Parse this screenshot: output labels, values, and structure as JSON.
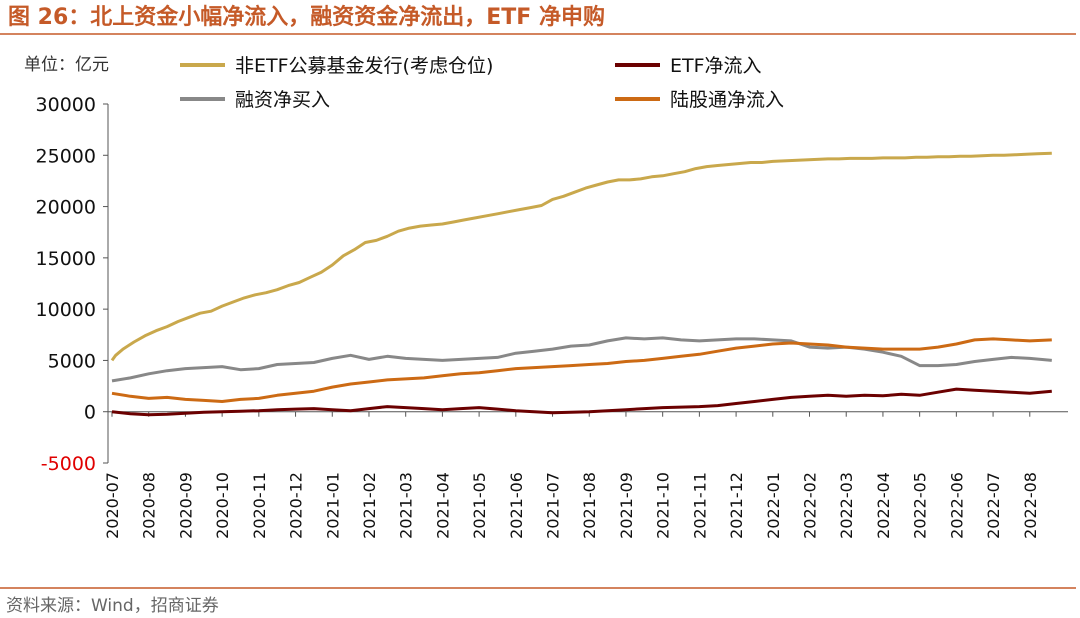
{
  "figure": {
    "title": "图 26：北上资金小幅净流入，融资资金净流出，ETF 净申购",
    "unit_label": "单位：亿元",
    "source": "资料来源：Wind，招商证券"
  },
  "chart_data": {
    "type": "line",
    "ylim": [
      -5000,
      30000
    ],
    "y_ticks": [
      30000,
      25000,
      20000,
      15000,
      10000,
      5000,
      0,
      -5000
    ],
    "y_tick_labels": [
      "30000",
      "25000",
      "20000",
      "15000",
      "10000",
      "5000",
      "0",
      "-5000"
    ],
    "categories": [
      "2020-07",
      "2020-08",
      "2020-09",
      "2020-10",
      "2020-11",
      "2020-12",
      "2021-01",
      "2021-02",
      "2021-03",
      "2021-04",
      "2021-05",
      "2021-06",
      "2021-07",
      "2021-08",
      "2021-09",
      "2021-10",
      "2021-11",
      "2021-12",
      "2022-01",
      "2022-02",
      "2022-03",
      "2022-04",
      "2022-05",
      "2022-06",
      "2022-07",
      "2022-08"
    ],
    "series": [
      {
        "name": "非ETF公募基金发行(考虑仓位)",
        "color": "#c9a84c",
        "x": [
          0,
          0.1,
          0.3,
          0.6,
          0.9,
          1.2,
          1.5,
          1.8,
          2.1,
          2.4,
          2.7,
          3,
          3.3,
          3.6,
          3.9,
          4.2,
          4.5,
          4.8,
          5.1,
          5.4,
          5.7,
          6,
          6.3,
          6.6,
          6.9,
          7.2,
          7.5,
          7.8,
          8.1,
          8.4,
          8.7,
          9,
          9.3,
          9.6,
          9.9,
          10.2,
          10.5,
          10.8,
          11.1,
          11.4,
          11.7,
          12,
          12.3,
          12.6,
          12.9,
          13.2,
          13.5,
          13.8,
          14.1,
          14.4,
          14.7,
          15,
          15.3,
          15.6,
          15.9,
          16.2,
          16.5,
          16.8,
          17.1,
          17.4,
          17.7,
          18,
          18.3,
          18.6,
          18.9,
          19.2,
          19.5,
          19.8,
          20.1,
          20.4,
          20.7,
          21,
          21.3,
          21.6,
          21.9,
          22.2,
          22.5,
          22.8,
          23.1,
          23.4,
          23.7,
          24,
          24.3,
          24.6,
          24.9,
          25.2,
          25.6
        ],
        "values": [
          5000,
          5500,
          6100,
          6800,
          7400,
          7900,
          8300,
          8800,
          9200,
          9600,
          9800,
          10300,
          10700,
          11100,
          11400,
          11600,
          11900,
          12300,
          12600,
          13100,
          13600,
          14300,
          15200,
          15800,
          16500,
          16700,
          17100,
          17600,
          17900,
          18100,
          18200,
          18300,
          18500,
          18700,
          18900,
          19100,
          19300,
          19500,
          19700,
          19900,
          20100,
          20700,
          21000,
          21400,
          21800,
          22100,
          22400,
          22600,
          22600,
          22700,
          22900,
          23000,
          23200,
          23400,
          23700,
          23900,
          24000,
          24100,
          24200,
          24300,
          24300,
          24400,
          24450,
          24500,
          24550,
          24600,
          24650,
          24650,
          24700,
          24700,
          24700,
          24750,
          24750,
          24750,
          24800,
          24800,
          24850,
          24850,
          24900,
          24900,
          24950,
          25000,
          25000,
          25050,
          25100,
          25150,
          25200
        ]
      },
      {
        "name": "ETF净流入",
        "color": "#6b0000",
        "x": [
          0,
          0.5,
          1,
          1.5,
          2,
          2.5,
          3,
          3.5,
          4,
          4.5,
          5,
          5.5,
          6,
          6.5,
          7,
          7.5,
          8,
          8.5,
          9,
          9.5,
          10,
          10.5,
          11,
          11.5,
          12,
          12.5,
          13,
          13.5,
          14,
          14.5,
          15,
          15.5,
          16,
          16.5,
          17,
          17.5,
          18,
          18.5,
          19,
          19.5,
          20,
          20.5,
          21,
          21.5,
          22,
          22.5,
          23,
          23.5,
          24,
          24.5,
          25,
          25.6
        ],
        "values": [
          0,
          -200,
          -300,
          -250,
          -150,
          -50,
          0,
          50,
          100,
          200,
          250,
          300,
          200,
          100,
          300,
          500,
          400,
          300,
          200,
          300,
          400,
          250,
          100,
          0,
          -100,
          -50,
          0,
          100,
          200,
          300,
          400,
          450,
          500,
          600,
          800,
          1000,
          1200,
          1400,
          1500,
          1600,
          1500,
          1600,
          1550,
          1700,
          1600,
          1900,
          2200,
          2100,
          2000,
          1900,
          1800,
          2000
        ]
      },
      {
        "name": "融资净买入",
        "color": "#888888",
        "x": [
          0,
          0.5,
          1,
          1.5,
          2,
          2.5,
          3,
          3.5,
          4,
          4.5,
          5,
          5.5,
          6,
          6.5,
          7,
          7.5,
          8,
          8.5,
          9,
          9.5,
          10,
          10.5,
          11,
          11.5,
          12,
          12.5,
          13,
          13.5,
          14,
          14.5,
          15,
          15.5,
          16,
          16.5,
          17,
          17.5,
          18,
          18.5,
          19,
          19.5,
          20,
          20.5,
          21,
          21.5,
          22,
          22.5,
          23,
          23.5,
          24,
          24.5,
          25,
          25.6
        ],
        "values": [
          3000,
          3300,
          3700,
          4000,
          4200,
          4300,
          4400,
          4100,
          4200,
          4600,
          4700,
          4800,
          5200,
          5500,
          5100,
          5400,
          5200,
          5100,
          5000,
          5100,
          5200,
          5300,
          5700,
          5900,
          6100,
          6400,
          6500,
          6900,
          7200,
          7100,
          7200,
          7000,
          6900,
          7000,
          7100,
          7100,
          7000,
          6900,
          6300,
          6200,
          6300,
          6100,
          5800,
          5400,
          4500,
          4500,
          4600,
          4900,
          5100,
          5300,
          5200,
          5000
        ]
      },
      {
        "name": "陆股通净流入",
        "color": "#cc6a14",
        "x": [
          0,
          0.5,
          1,
          1.5,
          2,
          2.5,
          3,
          3.5,
          4,
          4.5,
          5,
          5.5,
          6,
          6.5,
          7,
          7.5,
          8,
          8.5,
          9,
          9.5,
          10,
          10.5,
          11,
          11.5,
          12,
          12.5,
          13,
          13.5,
          14,
          14.5,
          15,
          15.5,
          16,
          16.5,
          17,
          17.5,
          18,
          18.5,
          19,
          19.5,
          20,
          20.5,
          21,
          21.5,
          22,
          22.5,
          23,
          23.5,
          24,
          24.5,
          25,
          25.6
        ],
        "values": [
          1800,
          1500,
          1300,
          1400,
          1200,
          1100,
          1000,
          1200,
          1300,
          1600,
          1800,
          2000,
          2400,
          2700,
          2900,
          3100,
          3200,
          3300,
          3500,
          3700,
          3800,
          4000,
          4200,
          4300,
          4400,
          4500,
          4600,
          4700,
          4900,
          5000,
          5200,
          5400,
          5600,
          5900,
          6200,
          6400,
          6600,
          6700,
          6600,
          6500,
          6300,
          6200,
          6100,
          6100,
          6100,
          6300,
          6600,
          7000,
          7100,
          7000,
          6900,
          7000
        ]
      }
    ]
  }
}
